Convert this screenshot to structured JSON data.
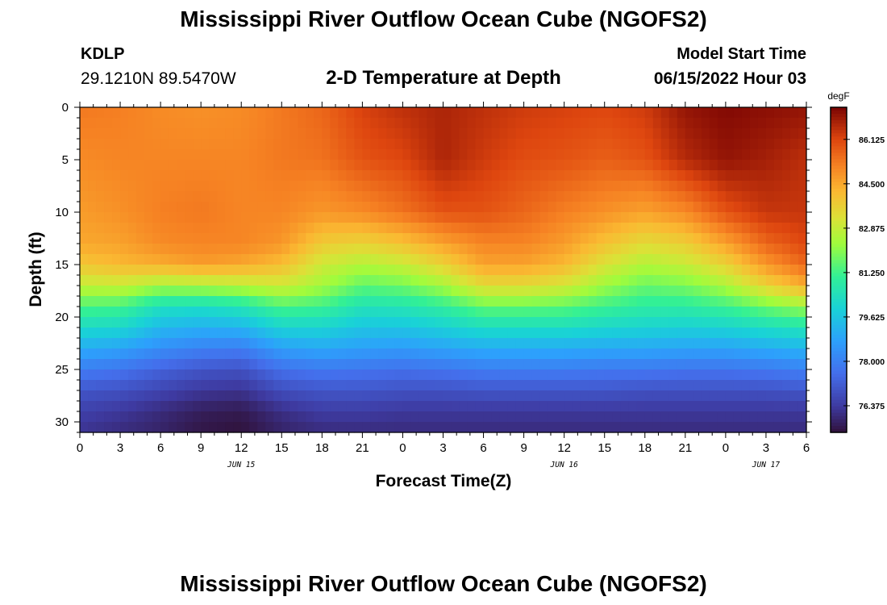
{
  "page": {
    "title": "Mississippi River Outflow Ocean Cube (NGOFS2)",
    "footer_title": "Mississippi River Outflow Ocean Cube (NGOFS2)",
    "station_id": "KDLP",
    "coords": "29.1210N  89.5470W",
    "model_label": "Model Start Time",
    "model_time": "06/15/2022 Hour 03"
  },
  "chart_data": {
    "type": "heatmap",
    "title": "2-D Temperature at Depth",
    "xlabel": "Forecast Time(Z)",
    "ylabel": "Depth (ft)",
    "units": "degF",
    "y_reversed": true,
    "ylim": [
      0,
      31
    ],
    "y_ticks": [
      0,
      5,
      10,
      15,
      20,
      25,
      30
    ],
    "x_tick_labels": [
      "0",
      "3",
      "6",
      "9",
      "12",
      "15",
      "18",
      "21",
      "0",
      "3",
      "6",
      "9",
      "12",
      "15",
      "18",
      "21",
      "0",
      "3",
      "6"
    ],
    "date_labels": [
      {
        "hour_index": 12,
        "label": "JUN 15"
      },
      {
        "hour_index": 36,
        "label": "JUN 16"
      },
      {
        "hour_index": 51,
        "label": "JUN 17"
      }
    ],
    "time_hours": [
      0,
      54
    ],
    "value_range": [
      75.4,
      87.3
    ],
    "colorbar_ticks": [
      "86.125",
      "84.500",
      "82.875",
      "81.250",
      "79.625",
      "78.000",
      "76.375"
    ],
    "colorbar_values": [
      86.125,
      84.5,
      82.875,
      81.25,
      79.625,
      78.0,
      76.375
    ],
    "depth_profile_ft": [
      0,
      5,
      10,
      13,
      15,
      17,
      19,
      21,
      23,
      25,
      27,
      29,
      31
    ],
    "time_samples_hours": [
      0,
      3,
      6,
      9,
      12,
      15,
      18,
      21,
      24,
      27,
      30,
      33,
      36,
      39,
      42,
      45,
      48,
      51,
      54
    ],
    "temperature_degF": [
      [
        85.3,
        85.0,
        84.7,
        84.5,
        83.9,
        82.8,
        81.4,
        80.2,
        79.0,
        77.9,
        77.0,
        76.5,
        76.2
      ],
      [
        85.2,
        85.1,
        84.9,
        84.6,
        84.2,
        82.9,
        81.3,
        80.1,
        78.8,
        77.7,
        76.9,
        76.3,
        76.0
      ],
      [
        85.0,
        85.1,
        85.2,
        85.0,
        84.4,
        82.4,
        80.4,
        79.3,
        78.3,
        77.3,
        76.6,
        76.0,
        75.8
      ],
      [
        84.9,
        85.1,
        85.3,
        85.1,
        84.7,
        82.5,
        80.3,
        79.1,
        78.0,
        77.0,
        76.3,
        75.7,
        75.5
      ],
      [
        85.0,
        85.1,
        85.1,
        85.1,
        84.5,
        82.7,
        80.6,
        79.2,
        77.9,
        76.9,
        76.2,
        75.6,
        75.4
      ],
      [
        85.3,
        85.3,
        85.1,
        84.8,
        84.1,
        83.0,
        81.4,
        80.0,
        78.7,
        77.6,
        76.8,
        76.1,
        75.8
      ],
      [
        85.6,
        85.4,
        84.8,
        83.8,
        83.0,
        82.4,
        81.2,
        80.0,
        78.9,
        77.8,
        77.0,
        76.4,
        76.0
      ],
      [
        86.2,
        85.9,
        85.0,
        83.6,
        82.6,
        81.6,
        80.5,
        79.6,
        78.7,
        77.7,
        77.0,
        76.4,
        76.0
      ],
      [
        86.5,
        86.1,
        85.4,
        84.0,
        82.9,
        81.8,
        80.6,
        79.6,
        78.6,
        77.6,
        76.9,
        76.3,
        76.0
      ],
      [
        86.7,
        86.7,
        85.9,
        84.6,
        83.6,
        82.4,
        81.0,
        79.9,
        78.8,
        77.7,
        76.9,
        76.3,
        76.0
      ],
      [
        86.5,
        86.3,
        85.9,
        85.1,
        84.6,
        83.4,
        81.7,
        80.3,
        79.0,
        77.9,
        77.0,
        76.3,
        76.0
      ],
      [
        86.3,
        86.0,
        85.6,
        85.1,
        84.6,
        83.4,
        81.7,
        80.3,
        79.0,
        77.9,
        77.0,
        76.3,
        76.0
      ],
      [
        86.2,
        85.9,
        85.2,
        84.7,
        84.2,
        83.1,
        81.6,
        80.3,
        79.0,
        77.9,
        77.0,
        76.3,
        76.0
      ],
      [
        86.1,
        85.7,
        84.9,
        84.0,
        83.2,
        82.3,
        81.2,
        80.1,
        78.9,
        77.8,
        77.0,
        76.3,
        76.0
      ],
      [
        86.3,
        85.9,
        84.6,
        83.4,
        82.6,
        81.7,
        80.9,
        80.0,
        78.9,
        77.8,
        76.9,
        76.3,
        76.0
      ],
      [
        87.0,
        86.6,
        85.0,
        83.7,
        82.9,
        81.9,
        80.9,
        79.9,
        78.8,
        77.7,
        76.9,
        76.3,
        76.0
      ],
      [
        87.2,
        87.0,
        85.9,
        84.6,
        83.6,
        82.5,
        81.2,
        80.0,
        78.8,
        77.7,
        76.9,
        76.3,
        76.0
      ],
      [
        87.1,
        86.8,
        86.4,
        85.6,
        84.8,
        83.6,
        81.8,
        80.3,
        79.0,
        77.8,
        76.9,
        76.3,
        76.0
      ],
      [
        87.0,
        86.5,
        86.4,
        86.1,
        85.6,
        84.4,
        82.3,
        80.6,
        79.2,
        78.0,
        77.0,
        76.3,
        76.0
      ]
    ]
  }
}
